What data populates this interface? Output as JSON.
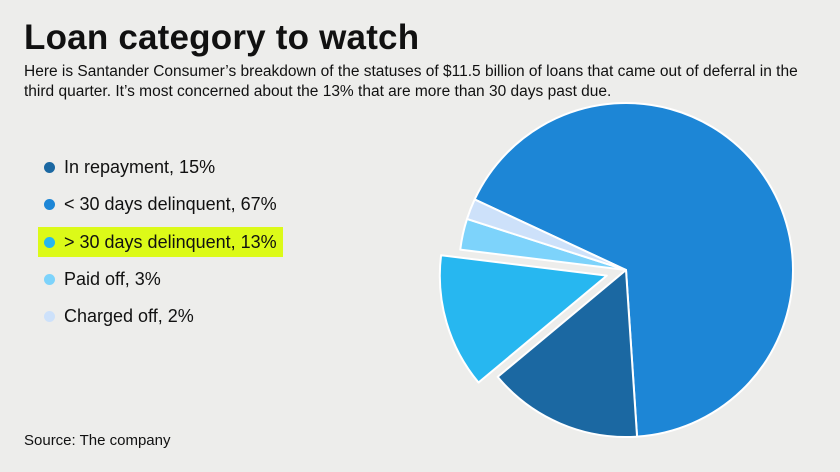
{
  "title": "Loan category to watch",
  "subtitle": "Here is Santander Consumer’s breakdown of the statuses of $11.5 billion of loans that came out of deferral in the third quarter. It’s most concerned about the 13% that are more than 30 days past due.",
  "source": "Source: The company",
  "chart_data": {
    "type": "pie",
    "slices": [
      {
        "label": "In repayment, 15%",
        "value": 15,
        "color": "#1b68a2",
        "highlighted": false
      },
      {
        "label": "< 30 days delinquent, 67%",
        "value": 67,
        "color": "#1d86d6",
        "highlighted": false
      },
      {
        "label": "> 30 days delinquent, 13%",
        "value": 13,
        "color": "#27b7f0",
        "highlighted": true,
        "exploded": true
      },
      {
        "label": "Paid off, 3%",
        "value": 3,
        "color": "#7dd3fb",
        "highlighted": false
      },
      {
        "label": "Charged off, 2%",
        "value": 2,
        "color": "#cde1fa",
        "highlighted": false
      }
    ],
    "legend_position": "left",
    "highlight_color": "#dcfa18"
  }
}
